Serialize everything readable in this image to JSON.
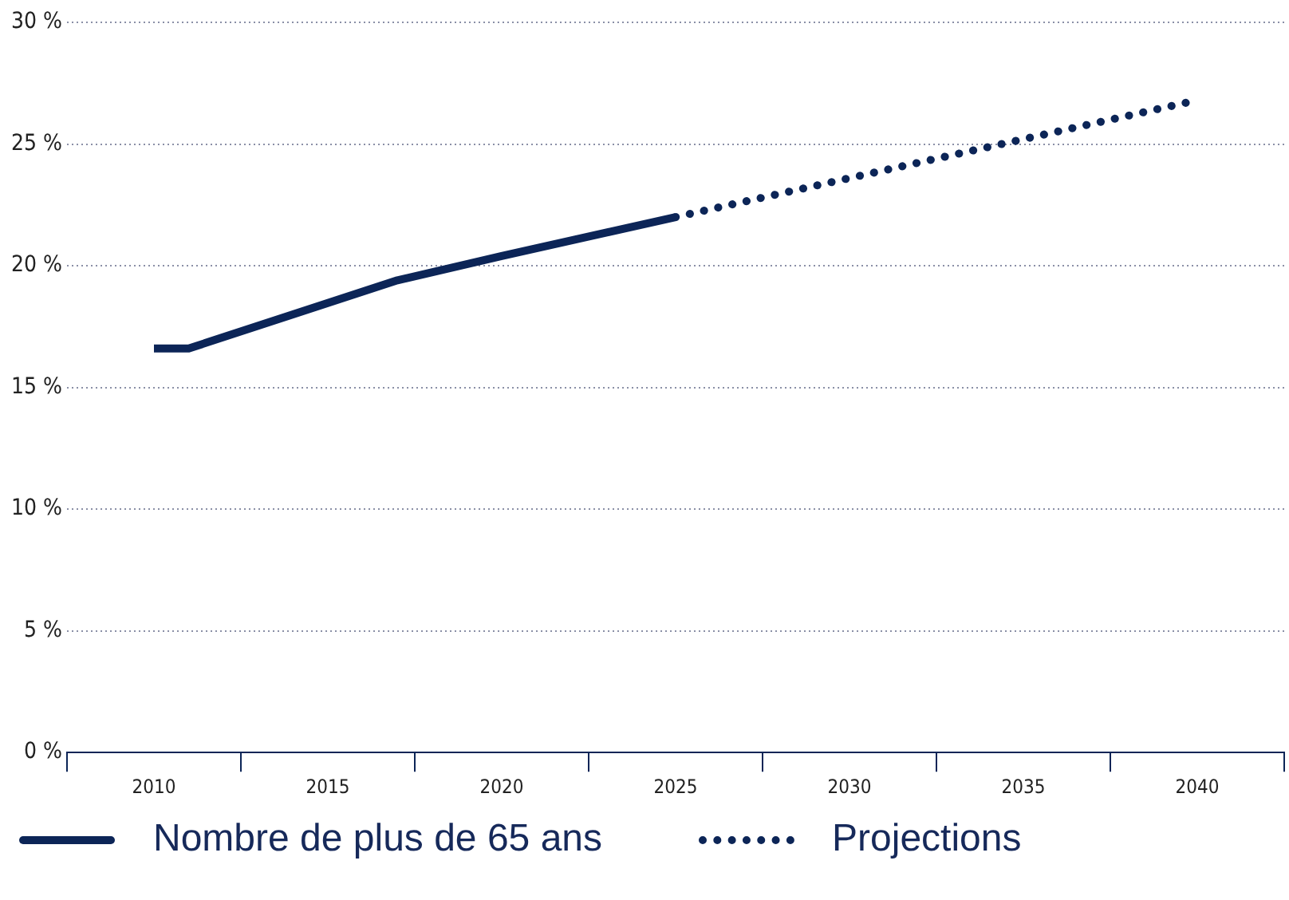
{
  "chart_data": {
    "type": "line",
    "series": [
      {
        "name": "Nombre de plus de 65 ans",
        "color": "#0c2557",
        "line_style": "solid",
        "x": [
          2010,
          2011,
          2014,
          2017,
          2020,
          2025
        ],
        "values": [
          16.6,
          16.6,
          18.0,
          19.4,
          20.4,
          22.0
        ]
      },
      {
        "name": "Projections",
        "color": "#0c2557",
        "line_style": "dotted",
        "x": [
          2025,
          2040
        ],
        "values": [
          22.0,
          26.8
        ]
      }
    ],
    "xlim": [
      2007.5,
      2042.5
    ],
    "xticks": [
      {
        "value": 2007.5,
        "label": null
      },
      2010,
      {
        "value": 2012.5,
        "label": null
      },
      2015,
      {
        "value": 2017.5,
        "label": null
      },
      2020,
      {
        "value": 2022.5,
        "label": null
      },
      2025,
      {
        "value": 2027.5,
        "label": null
      },
      2030,
      {
        "value": 2032.5,
        "label": null
      },
      2035,
      {
        "value": 2037.5,
        "label": null
      },
      2040,
      {
        "value": 2042.5,
        "label": null
      }
    ],
    "ylim": [
      0,
      30
    ],
    "yticks": [
      {
        "value": 0,
        "label": "0 %"
      },
      {
        "value": 5,
        "label": "5 %"
      },
      {
        "value": 10,
        "label": "10 %"
      },
      {
        "value": 15,
        "label": "15 %"
      },
      {
        "value": 20,
        "label": "20 %"
      },
      {
        "value": 25,
        "label": "25 %"
      },
      {
        "value": 30,
        "label": "30 %"
      }
    ],
    "grid": "y",
    "legend": "bottom",
    "marker": "none"
  }
}
